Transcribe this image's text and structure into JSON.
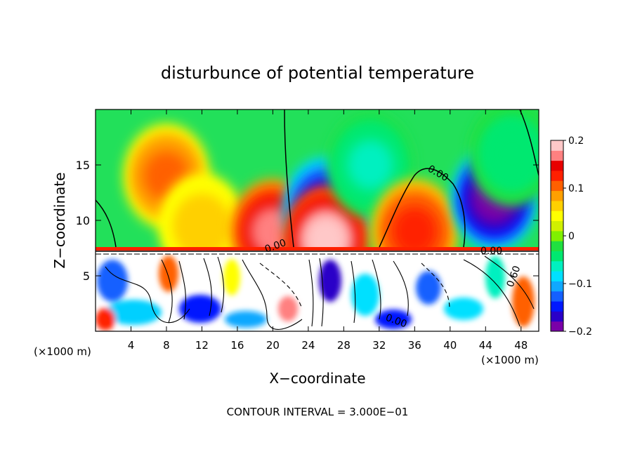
{
  "chart_data": {
    "type": "heatmap",
    "title": "disturbunce of potential temperature",
    "xlabel": "X−coordinate",
    "ylabel": "Z−coordinate",
    "x_unit_left": "(×1000 m)",
    "x_unit_right": "(×1000 m)",
    "footer": "CONTOUR INTERVAL = 3.000E−01",
    "xlim": [
      0,
      50
    ],
    "ylim": [
      0,
      20
    ],
    "x_ticks": [
      4,
      8,
      12,
      16,
      20,
      24,
      28,
      32,
      36,
      40,
      44,
      48
    ],
    "y_ticks": [
      5,
      10,
      15
    ],
    "colorbar": {
      "range": [
        -0.2,
        0.2
      ],
      "tick_values": [
        0.2,
        0.1,
        0,
        -0.1,
        -0.2
      ],
      "tick_labels": [
        "0.2",
        "0.1",
        "0",
        "−0.1",
        "−0.2"
      ],
      "colors": [
        "#7a00a8",
        "#2a00c8",
        "#0018ff",
        "#1460ff",
        "#10a8ff",
        "#00e0ff",
        "#00f0c0",
        "#00e870",
        "#20e040",
        "#80f000",
        "#d0f000",
        "#ffff00",
        "#ffd000",
        "#ffa000",
        "#ff6000",
        "#ff2000",
        "#e80000",
        "#ff8080",
        "#ffc8c8"
      ]
    },
    "contour_labels": [
      "0.00",
      "0.00",
      "0.00",
      "0.00",
      "0.60"
    ],
    "anomalies_above_7km": [
      {
        "x": 8,
        "z": 14,
        "value": 0.1,
        "sign": "warm"
      },
      {
        "x": 12,
        "z": 9.5,
        "value": 0.07,
        "sign": "warm"
      },
      {
        "x": 20,
        "z": 9,
        "value": 0.16,
        "sign": "warm"
      },
      {
        "x": 26,
        "z": 11,
        "value": -0.18,
        "sign": "cold"
      },
      {
        "x": 26,
        "z": 8.3,
        "value": 0.2,
        "sign": "warm"
      },
      {
        "x": 31,
        "z": 15,
        "value": -0.06,
        "sign": "cold"
      },
      {
        "x": 36,
        "z": 9,
        "value": 0.13,
        "sign": "warm"
      },
      {
        "x": 45,
        "z": 12,
        "value": -0.19,
        "sign": "cold"
      },
      {
        "x": 47,
        "z": 16,
        "value": -0.05,
        "sign": "cold"
      }
    ]
  }
}
